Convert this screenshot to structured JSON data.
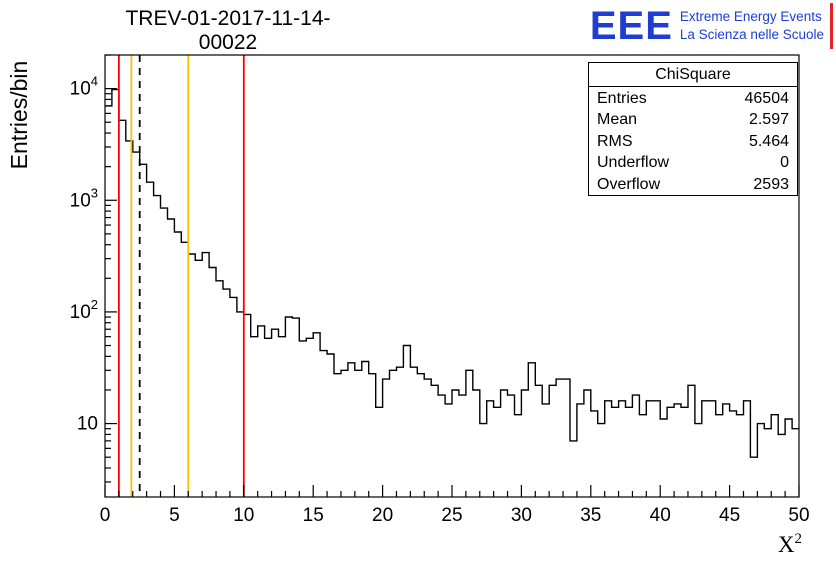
{
  "title": "TREV-01-2017-11-14-00022",
  "logo": {
    "mark": "EEE",
    "line1": "Extreme Energy Events",
    "line2": "La Scienza nelle Scuole",
    "blue": "#1d3ed1",
    "red": "#e32528"
  },
  "stats": {
    "title": "ChiSquare",
    "rows": [
      {
        "label": "Entries",
        "value": "46504"
      },
      {
        "label": "Mean",
        "value": "2.597"
      },
      {
        "label": "RMS",
        "value": "5.464"
      },
      {
        "label": "Underflow",
        "value": "0"
      },
      {
        "label": "Overflow",
        "value": "2593"
      }
    ]
  },
  "chart_data": {
    "type": "bar",
    "title": "TREV-01-2017-11-14-00022",
    "xlabel": {
      "base": "X",
      "sup": "2"
    },
    "ylabel": "Entries/bin",
    "xlim": [
      0,
      50
    ],
    "ylim": [
      2.2,
      20000
    ],
    "yscale": "log",
    "grid": false,
    "legend": null,
    "line_color": "#000000",
    "bin_width": 0.5,
    "xticks": [
      0,
      5,
      10,
      15,
      20,
      25,
      30,
      35,
      40,
      45,
      50
    ],
    "yticks": [
      {
        "value": 10,
        "label": "10",
        "exp": ""
      },
      {
        "value": 100,
        "label": "10",
        "exp": "2"
      },
      {
        "value": 1000,
        "label": "10",
        "exp": "3"
      },
      {
        "value": 10000,
        "label": "10",
        "exp": "4"
      }
    ],
    "vlines": [
      {
        "x": 1.0,
        "color": "#ff0000",
        "style": "solid"
      },
      {
        "x": 1.9,
        "color": "#ffbf00",
        "style": "solid"
      },
      {
        "x": 2.5,
        "color": "#000000",
        "style": "dashed"
      },
      {
        "x": 6.0,
        "color": "#ffbf00",
        "style": "solid"
      },
      {
        "x": 10.0,
        "color": "#ff0000",
        "style": "solid"
      }
    ],
    "values": [
      7000,
      9800,
      5200,
      3400,
      2700,
      2100,
      1450,
      1100,
      850,
      680,
      520,
      420,
      330,
      290,
      340,
      250,
      190,
      160,
      135,
      100,
      95,
      60,
      75,
      58,
      70,
      60,
      90,
      88,
      55,
      58,
      65,
      45,
      42,
      28,
      30,
      35,
      30,
      36,
      28,
      14,
      25,
      30,
      32,
      50,
      32,
      28,
      25,
      22,
      18,
      15,
      20,
      18,
      30,
      20,
      10,
      16,
      14,
      20,
      18,
      12,
      20,
      35,
      22,
      15,
      22,
      25,
      25,
      7,
      15,
      20,
      13,
      10,
      16,
      14,
      16,
      14,
      18,
      12,
      16,
      16,
      11,
      14,
      15,
      14,
      22,
      10,
      16,
      16,
      12,
      15,
      13,
      12,
      16,
      5,
      10,
      9,
      12,
      8,
      11,
      9
    ]
  }
}
